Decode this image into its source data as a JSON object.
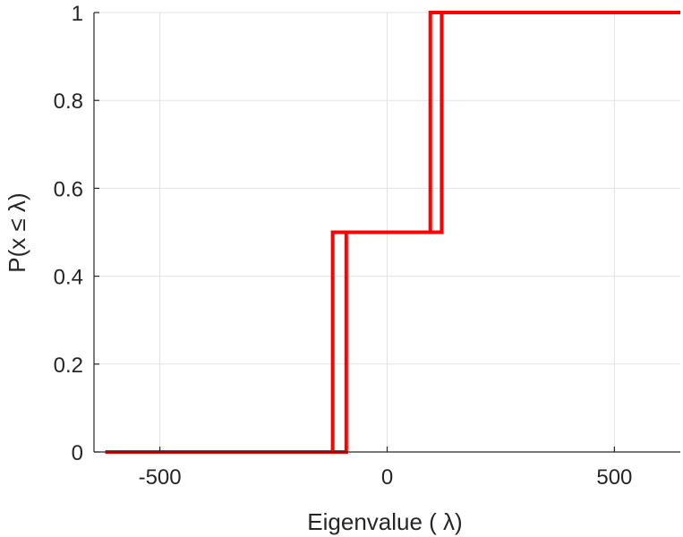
{
  "chart_data": {
    "type": "line",
    "subtype": "step-cdf",
    "title": "",
    "xlabel": "Eigenvalue (   λ)",
    "ylabel": "P(x ≤ λ)",
    "xlim": [
      -645,
      645
    ],
    "ylim": [
      0,
      1
    ],
    "xticks": [
      -500,
      0,
      500
    ],
    "xtick_labels": [
      "-500",
      "0",
      "500"
    ],
    "yticks": [
      0,
      0.2,
      0.4,
      0.6,
      0.8,
      1
    ],
    "ytick_labels": [
      "0",
      "0.2",
      "0.4",
      "0.6",
      "0.8",
      "1"
    ],
    "grid": true,
    "line_color": "#ff0000",
    "series": [
      {
        "x": [
          -620,
          -120,
          -120,
          95,
          95,
          645
        ],
        "y": [
          0,
          0,
          0.5,
          0.5,
          1,
          1
        ]
      },
      {
        "x": [
          -620,
          -90,
          -90,
          120,
          120,
          645
        ],
        "y": [
          0,
          0,
          0.5,
          0.5,
          1,
          1
        ]
      }
    ]
  }
}
